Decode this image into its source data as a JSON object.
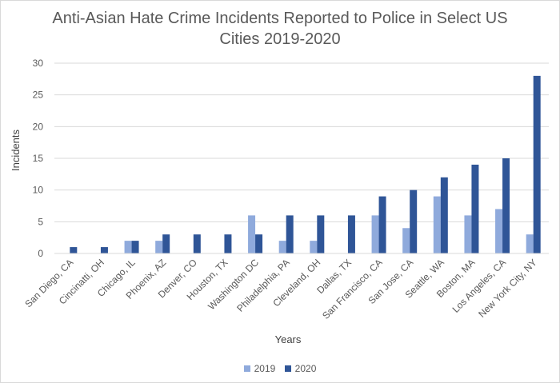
{
  "chart_data": {
    "type": "bar",
    "title_line1": "Anti-Asian Hate Crime Incidents Reported to Police in Select US",
    "title_line2": "Cities 2019-2020",
    "xlabel": "Years",
    "ylabel": "Incidents",
    "ylim": [
      0,
      30
    ],
    "yticks": [
      0,
      5,
      10,
      15,
      20,
      25,
      30
    ],
    "grid": true,
    "legend_position": "bottom",
    "categories": [
      "San Diego, CA",
      "Cincinatti, OH",
      "Chicago, IL",
      "Phoenix, AZ",
      "Denver, CO",
      "Houston, TX",
      "Washington DC",
      "Philadelphia, PA",
      "Cleveland, OH",
      "Dallas, TX",
      "San Francisco, CA",
      "San Jose, CA",
      "Seattle, WA",
      "Boston, MA",
      "Los Angeles, CA",
      "New York City, NY"
    ],
    "series": [
      {
        "name": "2019",
        "color": "#8faadc",
        "values": [
          0,
          0,
          2,
          2,
          0,
          0,
          6,
          2,
          2,
          0,
          6,
          4,
          9,
          6,
          7,
          3
        ]
      },
      {
        "name": "2020",
        "color": "#2f5597",
        "values": [
          1,
          1,
          2,
          3,
          3,
          3,
          3,
          6,
          6,
          6,
          9,
          10,
          12,
          14,
          15,
          28
        ]
      }
    ]
  }
}
